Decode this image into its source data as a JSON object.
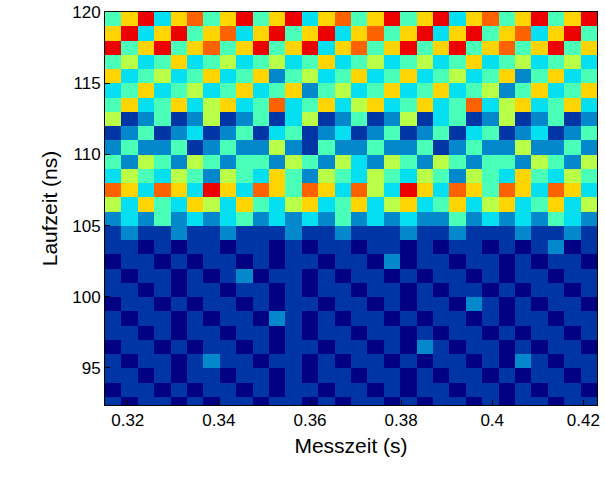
{
  "chart_data": {
    "type": "heatmap",
    "x_label": "Messzeit (s)",
    "y_label": "Laufzeit (ns)",
    "xlim": [
      0.315,
      0.423
    ],
    "ylim": [
      92.4,
      120
    ],
    "xticks": [
      0.32,
      0.34,
      0.36,
      0.38,
      0.4,
      0.42
    ],
    "yticks": [
      95,
      100,
      105,
      110,
      115,
      120
    ],
    "color": "jet",
    "zlim": [
      0,
      9
    ],
    "x": [
      0.3168,
      0.3204,
      0.324,
      0.3276,
      0.3312,
      0.3348,
      0.3384,
      0.342,
      0.3456,
      0.3492,
      0.3528,
      0.3564,
      0.36,
      0.3636,
      0.3672,
      0.3708,
      0.3744,
      0.378,
      0.3816,
      0.3852,
      0.3888,
      0.3924,
      0.396,
      0.3996,
      0.4032,
      0.4068,
      0.4104,
      0.414,
      0.4176,
      0.4212
    ],
    "y": [
      92.5,
      93.5,
      94.5,
      95.5,
      96.5,
      97.5,
      98.5,
      99.5,
      100.5,
      101.5,
      102.5,
      103.5,
      104.5,
      105.5,
      106.5,
      107.5,
      108.5,
      109.5,
      110.5,
      111.5,
      112.5,
      113.5,
      114.5,
      115.5,
      116.5,
      117.5,
      118.5,
      119.5
    ],
    "z": [
      [
        1,
        0,
        1,
        1,
        0,
        1,
        0,
        1,
        1,
        0,
        1,
        1,
        0,
        1,
        0,
        1,
        1,
        0,
        1,
        0,
        1,
        1,
        0,
        1,
        0,
        1,
        1,
        0,
        1,
        1
      ],
      [
        0,
        1,
        1,
        0,
        1,
        0,
        1,
        1,
        0,
        1,
        0,
        1,
        1,
        0,
        1,
        1,
        0,
        1,
        0,
        1,
        1,
        0,
        1,
        1,
        0,
        1,
        0,
        1,
        1,
        0
      ],
      [
        1,
        1,
        0,
        1,
        0,
        1,
        1,
        0,
        1,
        1,
        0,
        1,
        0,
        1,
        1,
        0,
        1,
        1,
        0,
        1,
        0,
        1,
        1,
        0,
        1,
        0,
        1,
        1,
        0,
        1
      ],
      [
        1,
        0,
        1,
        1,
        0,
        1,
        2,
        1,
        1,
        0,
        1,
        1,
        0,
        1,
        0,
        1,
        1,
        0,
        1,
        0,
        1,
        1,
        0,
        1,
        0,
        2,
        1,
        0,
        1,
        1
      ],
      [
        0,
        1,
        1,
        0,
        1,
        0,
        1,
        1,
        0,
        1,
        0,
        1,
        1,
        0,
        1,
        1,
        0,
        1,
        0,
        2,
        1,
        0,
        1,
        1,
        0,
        1,
        0,
        1,
        1,
        0
      ],
      [
        1,
        1,
        0,
        1,
        0,
        1,
        1,
        0,
        1,
        1,
        0,
        1,
        0,
        1,
        1,
        0,
        1,
        1,
        0,
        1,
        0,
        1,
        1,
        0,
        1,
        0,
        1,
        1,
        0,
        1
      ],
      [
        1,
        0,
        1,
        1,
        0,
        1,
        0,
        1,
        1,
        0,
        2,
        1,
        0,
        1,
        0,
        1,
        1,
        0,
        1,
        0,
        1,
        1,
        0,
        1,
        0,
        1,
        1,
        0,
        1,
        1
      ],
      [
        0,
        1,
        1,
        0,
        1,
        0,
        1,
        1,
        0,
        1,
        0,
        1,
        1,
        0,
        1,
        1,
        0,
        1,
        0,
        1,
        1,
        0,
        2,
        1,
        0,
        1,
        0,
        1,
        1,
        0
      ],
      [
        1,
        1,
        0,
        1,
        0,
        1,
        1,
        0,
        1,
        1,
        0,
        1,
        0,
        1,
        1,
        0,
        1,
        1,
        0,
        1,
        0,
        1,
        1,
        0,
        1,
        0,
        1,
        1,
        0,
        1
      ],
      [
        1,
        0,
        1,
        1,
        0,
        1,
        0,
        1,
        2,
        0,
        1,
        1,
        0,
        1,
        0,
        1,
        1,
        0,
        1,
        0,
        1,
        1,
        0,
        1,
        0,
        1,
        1,
        0,
        1,
        1
      ],
      [
        0,
        1,
        1,
        0,
        1,
        0,
        1,
        1,
        0,
        1,
        0,
        1,
        1,
        0,
        1,
        1,
        0,
        2,
        0,
        1,
        1,
        0,
        1,
        1,
        0,
        1,
        0,
        1,
        1,
        0
      ],
      [
        1,
        1,
        0,
        1,
        0,
        1,
        1,
        0,
        1,
        1,
        0,
        1,
        0,
        1,
        1,
        0,
        1,
        1,
        0,
        1,
        0,
        1,
        1,
        0,
        1,
        0,
        1,
        2,
        0,
        1
      ],
      [
        1,
        2,
        1,
        1,
        2,
        1,
        1,
        2,
        1,
        1,
        1,
        2,
        1,
        1,
        2,
        1,
        1,
        1,
        2,
        1,
        1,
        2,
        1,
        1,
        1,
        2,
        1,
        1,
        2,
        1
      ],
      [
        2,
        3,
        2,
        4,
        2,
        3,
        2,
        3,
        4,
        2,
        3,
        2,
        3,
        2,
        4,
        2,
        3,
        2,
        3,
        2,
        2,
        4,
        2,
        3,
        2,
        3,
        2,
        4,
        3,
        2
      ],
      [
        5,
        3,
        6,
        4,
        3,
        6,
        5,
        3,
        6,
        4,
        3,
        5,
        6,
        3,
        4,
        6,
        3,
        5,
        6,
        3,
        4,
        6,
        3,
        5,
        6,
        3,
        4,
        6,
        3,
        5
      ],
      [
        7,
        6,
        3,
        7,
        6,
        3,
        8,
        6,
        3,
        7,
        6,
        4,
        7,
        6,
        3,
        7,
        5,
        3,
        8,
        6,
        3,
        7,
        6,
        4,
        7,
        6,
        3,
        7,
        6,
        3
      ],
      [
        3,
        5,
        4,
        3,
        5,
        4,
        2,
        5,
        4,
        3,
        6,
        4,
        2,
        5,
        4,
        3,
        5,
        4,
        3,
        5,
        4,
        2,
        5,
        4,
        3,
        6,
        4,
        3,
        5,
        4
      ],
      [
        4,
        2,
        5,
        4,
        2,
        5,
        4,
        2,
        4,
        4,
        2,
        5,
        4,
        2,
        5,
        3,
        2,
        5,
        4,
        2,
        5,
        4,
        2,
        4,
        4,
        2,
        5,
        4,
        2,
        5
      ],
      [
        2,
        4,
        2,
        2,
        4,
        1,
        2,
        4,
        2,
        2,
        5,
        2,
        1,
        4,
        2,
        2,
        4,
        2,
        2,
        4,
        1,
        2,
        4,
        2,
        2,
        5,
        2,
        2,
        4,
        2
      ],
      [
        1,
        2,
        4,
        1,
        2,
        3,
        1,
        2,
        4,
        1,
        3,
        4,
        1,
        2,
        3,
        1,
        2,
        4,
        1,
        2,
        4,
        1,
        3,
        4,
        1,
        2,
        3,
        1,
        2,
        4
      ],
      [
        5,
        1,
        2,
        4,
        1,
        2,
        5,
        1,
        2,
        4,
        1,
        3,
        5,
        1,
        2,
        4,
        1,
        2,
        5,
        1,
        3,
        4,
        1,
        2,
        5,
        1,
        2,
        4,
        1,
        2
      ],
      [
        4,
        6,
        3,
        4,
        6,
        3,
        5,
        6,
        3,
        4,
        7,
        3,
        4,
        6,
        3,
        5,
        6,
        3,
        4,
        6,
        3,
        4,
        7,
        3,
        5,
        6,
        3,
        4,
        6,
        3
      ],
      [
        3,
        4,
        6,
        3,
        4,
        5,
        3,
        4,
        6,
        3,
        4,
        6,
        2,
        4,
        5,
        3,
        4,
        6,
        3,
        4,
        6,
        3,
        4,
        5,
        2,
        4,
        6,
        3,
        4,
        6
      ],
      [
        6,
        3,
        4,
        5,
        3,
        4,
        6,
        3,
        4,
        6,
        2,
        4,
        5,
        3,
        4,
        6,
        3,
        4,
        6,
        3,
        4,
        5,
        3,
        4,
        6,
        2,
        4,
        6,
        3,
        4
      ],
      [
        4,
        5,
        3,
        4,
        6,
        3,
        4,
        5,
        3,
        4,
        5,
        3,
        4,
        6,
        3,
        4,
        5,
        3,
        4,
        5,
        3,
        4,
        6,
        3,
        4,
        5,
        3,
        4,
        5,
        3
      ],
      [
        8,
        4,
        6,
        8,
        4,
        6,
        7,
        4,
        6,
        8,
        4,
        6,
        8,
        3,
        6,
        7,
        4,
        6,
        8,
        4,
        6,
        8,
        4,
        6,
        7,
        4,
        6,
        8,
        4,
        6
      ],
      [
        6,
        8,
        3,
        6,
        8,
        4,
        6,
        7,
        3,
        6,
        8,
        4,
        6,
        8,
        3,
        6,
        7,
        4,
        6,
        8,
        3,
        6,
        8,
        4,
        6,
        7,
        3,
        6,
        8,
        4
      ],
      [
        4,
        6,
        8,
        3,
        6,
        7,
        4,
        6,
        8,
        4,
        6,
        8,
        3,
        6,
        7,
        4,
        6,
        8,
        4,
        6,
        8,
        3,
        6,
        7,
        4,
        6,
        8,
        4,
        6,
        8
      ]
    ]
  }
}
